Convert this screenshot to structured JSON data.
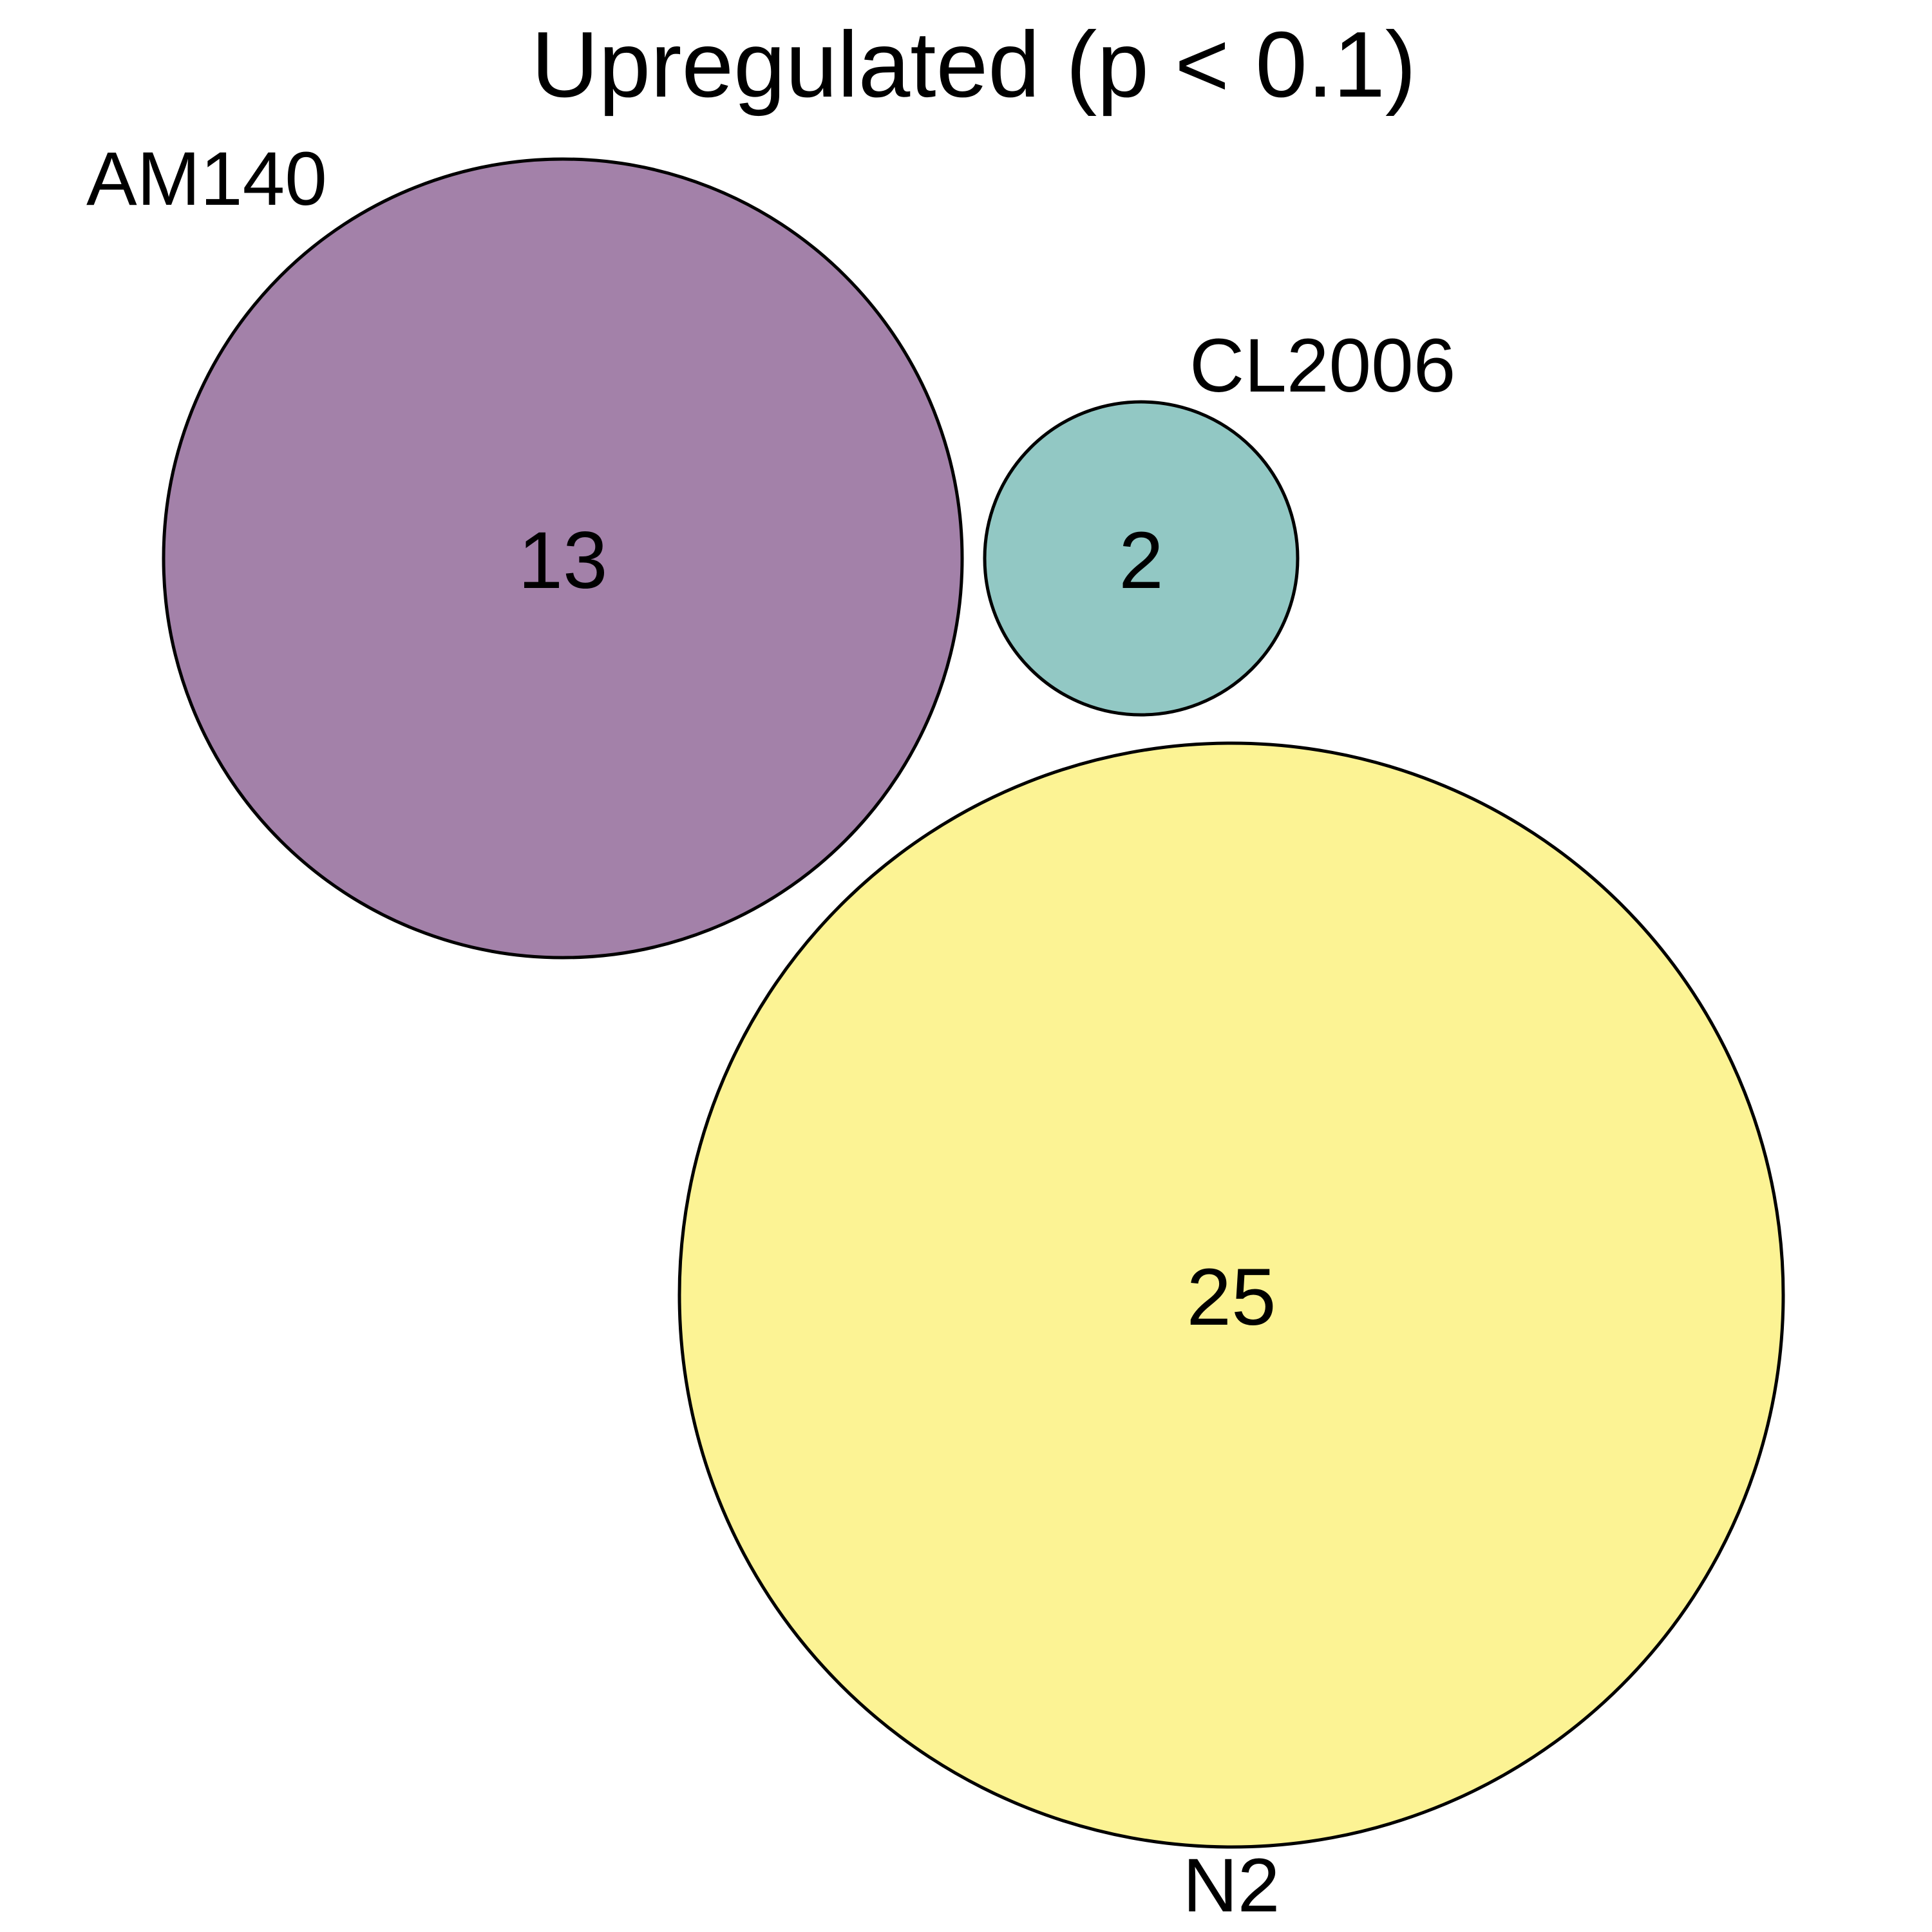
{
  "title": "Upregulated (p < 0.1)",
  "sets": [
    {
      "id": "am140",
      "label": "AM140",
      "count": "13",
      "color": "#a381a9"
    },
    {
      "id": "cl2006",
      "label": "CL2006",
      "count": "2",
      "color": "#92c8c4"
    },
    {
      "id": "n2",
      "label": "N2",
      "count": "25",
      "color": "#fcf394"
    }
  ]
}
